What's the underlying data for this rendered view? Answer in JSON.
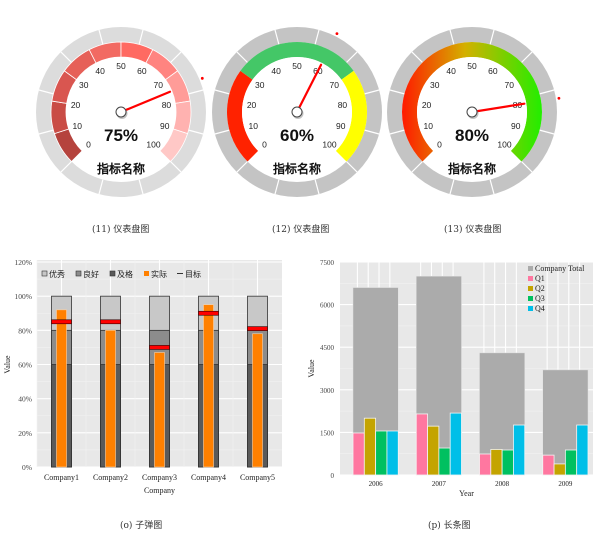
{
  "captions": {
    "gauge1": "(11) 仪表盘图",
    "gauge2": "(12) 仪表盘图",
    "gauge3": "(13) 仪表盘图",
    "bullet": "(o) 子弹图",
    "bar": "(p) 长条图"
  },
  "gauges": [
    {
      "value": 75,
      "label": "75%",
      "name": "指标名称",
      "ticks": [
        "0",
        "10",
        "20",
        "30",
        "40",
        "50",
        "60",
        "70",
        "80",
        "90",
        "100"
      ],
      "style": "red-gradient-bands"
    },
    {
      "value": 60,
      "label": "60%",
      "name": "指标名称",
      "ticks": [
        "0",
        "10",
        "20",
        "30",
        "40",
        "50",
        "60",
        "70",
        "80",
        "90",
        "100"
      ],
      "style": "red-green-yellow"
    },
    {
      "value": 80,
      "label": "80%",
      "name": "指标名称",
      "ticks": [
        "0",
        "10",
        "20",
        "30",
        "40",
        "50",
        "60",
        "70",
        "80",
        "90",
        "100"
      ],
      "style": "red-to-green-gradient"
    }
  ],
  "colors": {
    "gauge_outer": "#dcdcdc",
    "gauge_outer_2": "#c4c4c4",
    "needle": "#ff0000",
    "band_red": "#ff2200",
    "band_green": "#44c767",
    "band_yellow": "#ffff00",
    "bullet_excellent": "#c8c8c8",
    "bullet_good": "#8c8c8c",
    "bullet_pass": "#5a5a5a",
    "bullet_actual": "#ff8000",
    "bullet_target": "#ff0000",
    "bar_total": "#ababab",
    "q1": "#ff77a0",
    "q2": "#c4a400",
    "q3": "#00c060",
    "q4": "#00bfe8",
    "panel_bg": "#e8e8e8"
  },
  "chart_data": [
    {
      "type": "gauge",
      "title": "(11) 仪表盘图",
      "value": 75,
      "range": [
        0,
        100
      ],
      "center_label": "75%",
      "name": "指标名称"
    },
    {
      "type": "gauge",
      "title": "(12) 仪表盘图",
      "value": 60,
      "range": [
        0,
        100
      ],
      "center_label": "60%",
      "name": "指标名称",
      "bands": [
        {
          "from": 0,
          "to": 30,
          "color": "red"
        },
        {
          "from": 30,
          "to": 70,
          "color": "green"
        },
        {
          "from": 70,
          "to": 100,
          "color": "yellow"
        }
      ]
    },
    {
      "type": "gauge",
      "title": "(13) 仪表盘图",
      "value": 80,
      "range": [
        0,
        100
      ],
      "center_label": "80%",
      "name": "指标名称"
    },
    {
      "type": "bar",
      "subtype": "bullet",
      "title": "(o) 子弹图",
      "xlabel": "Company",
      "ylabel": "Value",
      "categories": [
        "Company1",
        "Company2",
        "Company3",
        "Company4",
        "Company5"
      ],
      "yticks": [
        "0%",
        "20%",
        "40%",
        "60%",
        "80%",
        "100%",
        "120%"
      ],
      "ylim": [
        0,
        120
      ],
      "legend": [
        "优秀",
        "良好",
        "及格",
        "实际",
        "目标"
      ],
      "series": [
        {
          "name": "优秀",
          "values": [
            100,
            100,
            100,
            100,
            100
          ]
        },
        {
          "name": "良好",
          "values": [
            80,
            80,
            80,
            80,
            80
          ]
        },
        {
          "name": "及格",
          "values": [
            60,
            60,
            60,
            60,
            60
          ]
        },
        {
          "name": "实际",
          "values": [
            92,
            80,
            67,
            95,
            78
          ]
        },
        {
          "name": "目标",
          "values": [
            85,
            85,
            70,
            90,
            81
          ]
        }
      ]
    },
    {
      "type": "bar",
      "title": "(p) 长条图",
      "xlabel": "Year",
      "ylabel": "Value",
      "categories": [
        "2006",
        "2007",
        "2008",
        "2009"
      ],
      "yticks": [
        "0",
        "1500",
        "3000",
        "4500",
        "6000",
        "7500"
      ],
      "ylim": [
        0,
        7500
      ],
      "legend": [
        "Company Total",
        "Q1",
        "Q2",
        "Q3",
        "Q4"
      ],
      "series": [
        {
          "name": "Company Total",
          "values": [
            6600,
            7000,
            4300,
            3700
          ]
        },
        {
          "name": "Q1",
          "values": [
            1480,
            2150,
            740,
            700
          ]
        },
        {
          "name": "Q2",
          "values": [
            2000,
            1720,
            900,
            390
          ]
        },
        {
          "name": "Q3",
          "values": [
            1550,
            950,
            880,
            880
          ]
        },
        {
          "name": "Q4",
          "values": [
            1550,
            2180,
            1760,
            1760
          ]
        }
      ]
    }
  ],
  "bullet": {
    "ylabel": "Value",
    "xlabel": "Company",
    "legend": [
      {
        "label": "优秀",
        "marker": "□"
      },
      {
        "label": "良好",
        "marker": "■"
      },
      {
        "label": "及格",
        "marker": "■"
      },
      {
        "label": "实际",
        "marker": "■"
      },
      {
        "label": "目标",
        "marker": "—"
      }
    ]
  },
  "bar": {
    "ylabel": "Value",
    "xlabel": "Year",
    "legend": [
      "Company Total",
      "Q1",
      "Q2",
      "Q3",
      "Q4"
    ]
  }
}
